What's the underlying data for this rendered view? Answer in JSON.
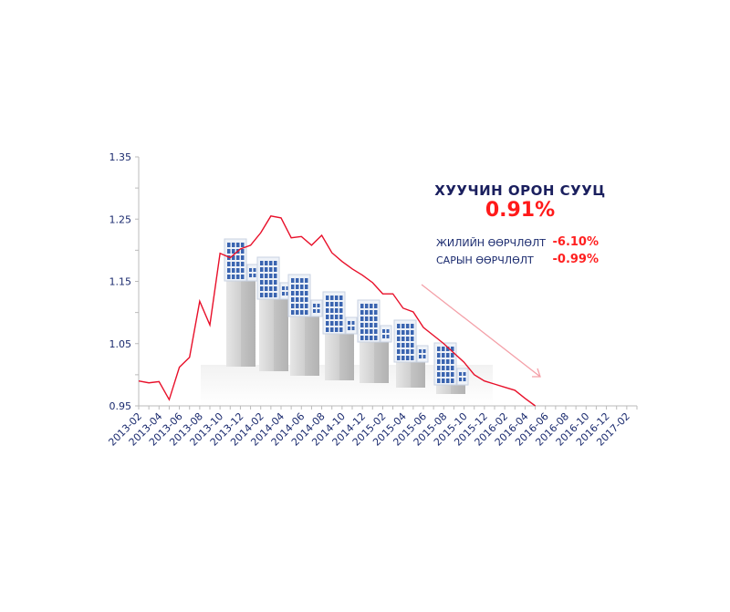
{
  "chart_data": {
    "type": "line",
    "title": "ХУУЧИН ОРОН СУУЦ",
    "headline_value": "0.91%",
    "stats": [
      {
        "label": "ЖИЛИЙН ӨӨРЧЛӨЛТ",
        "value": "-6.10%"
      },
      {
        "label": "САРЫН ӨӨРЧЛӨЛТ",
        "value": "-0.99%"
      }
    ],
    "xlabel": "",
    "ylabel": "",
    "ylim": [
      0.95,
      1.35
    ],
    "yticks": [
      "0.95",
      "1.05",
      "1.15",
      "1.25",
      "1.35"
    ],
    "xtick_labels": [
      "2013-02",
      "2013-04",
      "2013-06",
      "2013-08",
      "2013-10",
      "2013-12",
      "2014-02",
      "2014-04",
      "2014-06",
      "2014-08",
      "2014-10",
      "2014-12",
      "2015-02",
      "2015-04",
      "2015-06",
      "2015-08",
      "2015-10",
      "2015-12",
      "2016-02",
      "2016-04",
      "2016-06",
      "2016-08",
      "2016-10",
      "2016-12",
      "2017-02"
    ],
    "series": [
      {
        "name": "Хуучин орон сууц",
        "color": "#e8102a",
        "start": "2013-02",
        "values": [
          0.99,
          0.987,
          0.989,
          0.96,
          1.012,
          1.028,
          1.118,
          1.08,
          1.195,
          1.188,
          1.202,
          1.208,
          1.228,
          1.255,
          1.252,
          1.22,
          1.222,
          1.208,
          1.224,
          1.196,
          1.182,
          1.17,
          1.16,
          1.148,
          1.13,
          1.13,
          1.107,
          1.101,
          1.076,
          1.063,
          1.05,
          1.035,
          1.02,
          1.0,
          0.99,
          0.985,
          0.98,
          0.975,
          0.962,
          0.95
        ]
      }
    ],
    "trend_arrow_color": "#f4a0a8",
    "axis_color": "#bbbbbb",
    "text_color": "#1a2a6e"
  }
}
